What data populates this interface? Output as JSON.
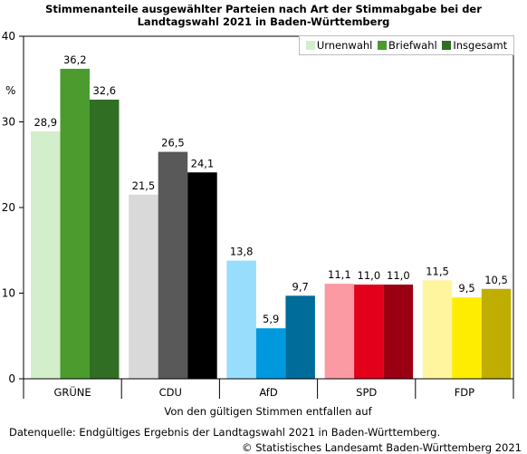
{
  "chart_data": {
    "type": "bar",
    "title_lines": [
      "Stimmenanteile ausgewählter Parteien nach Art der Stimmabgabe bei der",
      "Landtagswahl 2021 in Baden-Württemberg"
    ],
    "ylabel": "%",
    "xlabel": "Von den gültigen Stimmen entfallen auf",
    "ylim": [
      0,
      40
    ],
    "yticks": [
      0,
      10,
      20,
      30,
      40
    ],
    "categories": [
      "GRÜNE",
      "CDU",
      "AfD",
      "SPD",
      "FDP"
    ],
    "series": [
      {
        "name": "Urnenwahl",
        "values": [
          28.9,
          21.5,
          13.8,
          11.1,
          11.5
        ],
        "labels": [
          "28,9",
          "21,5",
          "13,8",
          "11,1",
          "11,5"
        ]
      },
      {
        "name": "Briefwahl",
        "values": [
          36.2,
          26.5,
          5.9,
          11.0,
          9.5
        ],
        "labels": [
          "36,2",
          "26,5",
          "5,9",
          "11,0",
          "9,5"
        ]
      },
      {
        "name": "Insgesamt",
        "values": [
          32.6,
          24.1,
          9.7,
          11.0,
          10.5
        ],
        "labels": [
          "32,6",
          "24,1",
          "9,7",
          "11,0",
          "10,5"
        ]
      }
    ],
    "colors": [
      [
        "#d3eecb",
        "#4b9b2f",
        "#306e23"
      ],
      [
        "#d9d9d9",
        "#595959",
        "#000000"
      ],
      [
        "#99ddfc",
        "#0099dd",
        "#006c99"
      ],
      [
        "#fb9aa2",
        "#e3001b",
        "#9a0012"
      ],
      [
        "#fff59e",
        "#ffed00",
        "#bfae00"
      ]
    ],
    "legend_colors": [
      "#d3eecb",
      "#4b9b2f",
      "#306e23"
    ],
    "legend_position": "top-right",
    "grid": false
  },
  "footer": {
    "source": "Datenquelle: Endgültiges Ergebnis der Landtagswahl 2021 in Baden-Württemberg.",
    "copyright": "© Statistisches Landesamt Baden-Württemberg 2021"
  }
}
